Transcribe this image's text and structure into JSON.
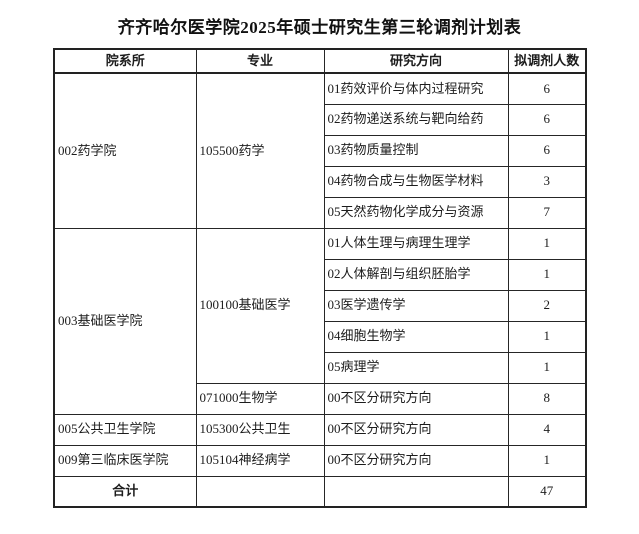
{
  "title": "齐齐哈尔医学院2025年硕士研究生第三轮调剂计划表",
  "table": {
    "columns": [
      "院系所",
      "专业",
      "研究方向",
      "拟调剂人数"
    ],
    "groups": [
      {
        "department": "002药学院",
        "majors": [
          {
            "major": "105500药学",
            "directions": [
              {
                "direction": "01药效评价与体内过程研究",
                "count": "6"
              },
              {
                "direction": "02药物递送系统与靶向给药",
                "count": "6"
              },
              {
                "direction": "03药物质量控制",
                "count": "6"
              },
              {
                "direction": "04药物合成与生物医学材料",
                "count": "3"
              },
              {
                "direction": "05天然药物化学成分与资源",
                "count": "7"
              }
            ]
          }
        ]
      },
      {
        "department": "003基础医学院",
        "majors": [
          {
            "major": "100100基础医学",
            "directions": [
              {
                "direction": "01人体生理与病理生理学",
                "count": "1"
              },
              {
                "direction": "02人体解剖与组织胚胎学",
                "count": "1"
              },
              {
                "direction": "03医学遗传学",
                "count": "2"
              },
              {
                "direction": "04细胞生物学",
                "count": "1"
              },
              {
                "direction": "05病理学",
                "count": "1"
              }
            ]
          },
          {
            "major": "071000生物学",
            "directions": [
              {
                "direction": "00不区分研究方向",
                "count": "8"
              }
            ]
          }
        ]
      },
      {
        "department": "005公共卫生学院",
        "majors": [
          {
            "major": "105300公共卫生",
            "directions": [
              {
                "direction": "00不区分研究方向",
                "count": "4"
              }
            ]
          }
        ]
      },
      {
        "department": "009第三临床医学院",
        "majors": [
          {
            "major": "105104神经病学",
            "directions": [
              {
                "direction": "00不区分研究方向",
                "count": "1"
              }
            ]
          }
        ]
      }
    ],
    "footer": {
      "label": "合计",
      "total": "47"
    }
  }
}
